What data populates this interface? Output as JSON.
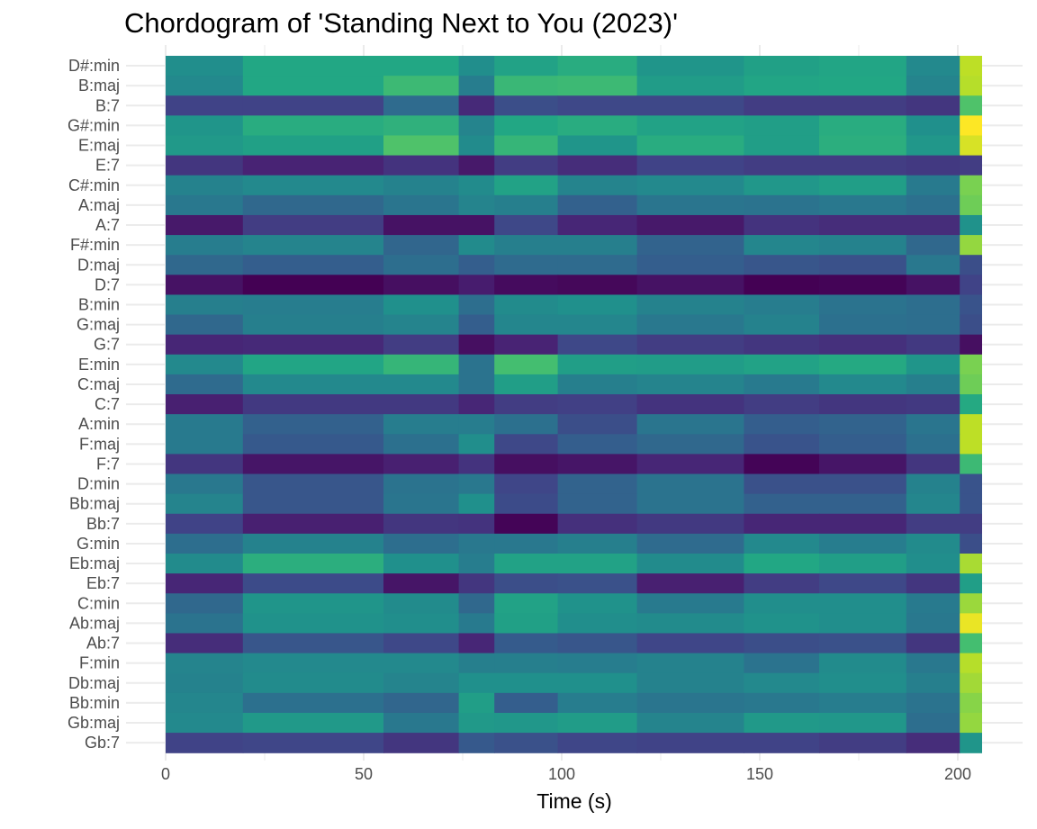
{
  "chart_data": {
    "type": "heatmap",
    "title": "Chordogram of 'Standing Next to You (2023)'",
    "xlabel": "Time (s)",
    "ylabel": "",
    "xlim": [
      0,
      206
    ],
    "x_ticks": [
      0,
      50,
      100,
      150,
      200
    ],
    "grid": true,
    "colormap": "viridis",
    "chords": [
      "D#:min",
      "B:maj",
      "B:7",
      "G#:min",
      "E:maj",
      "E:7",
      "C#:min",
      "A:maj",
      "A:7",
      "F#:min",
      "D:maj",
      "D:7",
      "B:min",
      "G:maj",
      "G:7",
      "E:min",
      "C:maj",
      "C:7",
      "A:min",
      "F:maj",
      "F:7",
      "D:min",
      "Bb:maj",
      "Bb:7",
      "G:min",
      "Eb:maj",
      "Eb:7",
      "C:min",
      "Ab:maj",
      "Ab:7",
      "F:min",
      "Db:maj",
      "Bb:min",
      "Gb:maj",
      "Gb:7"
    ],
    "time_segments": [
      0,
      19.5,
      55,
      74,
      83,
      99,
      119,
      146,
      165,
      187,
      200.5,
      206
    ],
    "values": [
      [
        0.49,
        0.6,
        0.6,
        0.49,
        0.58,
        0.62,
        0.52,
        0.57,
        0.59,
        0.47,
        0.9
      ],
      [
        0.47,
        0.6,
        0.68,
        0.42,
        0.67,
        0.68,
        0.55,
        0.59,
        0.6,
        0.45,
        0.89
      ],
      [
        0.2,
        0.2,
        0.35,
        0.12,
        0.24,
        0.22,
        0.22,
        0.18,
        0.18,
        0.16,
        0.72
      ],
      [
        0.52,
        0.62,
        0.64,
        0.45,
        0.6,
        0.62,
        0.58,
        0.56,
        0.62,
        0.5,
        1.0
      ],
      [
        0.54,
        0.57,
        0.72,
        0.48,
        0.66,
        0.52,
        0.62,
        0.56,
        0.63,
        0.53,
        0.94
      ],
      [
        0.16,
        0.1,
        0.15,
        0.07,
        0.18,
        0.13,
        0.2,
        0.18,
        0.18,
        0.17,
        0.18
      ],
      [
        0.44,
        0.47,
        0.44,
        0.48,
        0.58,
        0.45,
        0.47,
        0.53,
        0.56,
        0.41,
        0.8
      ],
      [
        0.4,
        0.34,
        0.39,
        0.45,
        0.43,
        0.31,
        0.39,
        0.38,
        0.4,
        0.37,
        0.78
      ],
      [
        0.07,
        0.18,
        0.05,
        0.05,
        0.22,
        0.11,
        0.07,
        0.15,
        0.13,
        0.13,
        0.51
      ],
      [
        0.42,
        0.45,
        0.33,
        0.48,
        0.43,
        0.43,
        0.32,
        0.46,
        0.44,
        0.34,
        0.84
      ],
      [
        0.34,
        0.3,
        0.36,
        0.3,
        0.35,
        0.35,
        0.3,
        0.27,
        0.25,
        0.4,
        0.24
      ],
      [
        0.05,
        0.0,
        0.04,
        0.08,
        0.03,
        0.02,
        0.05,
        0.0,
        0.01,
        0.05,
        0.2
      ],
      [
        0.43,
        0.42,
        0.5,
        0.36,
        0.48,
        0.5,
        0.44,
        0.42,
        0.38,
        0.36,
        0.26
      ],
      [
        0.34,
        0.43,
        0.45,
        0.3,
        0.46,
        0.46,
        0.4,
        0.44,
        0.37,
        0.36,
        0.24
      ],
      [
        0.11,
        0.12,
        0.18,
        0.04,
        0.1,
        0.22,
        0.18,
        0.16,
        0.14,
        0.17,
        0.04
      ],
      [
        0.47,
        0.59,
        0.66,
        0.38,
        0.7,
        0.56,
        0.55,
        0.58,
        0.61,
        0.52,
        0.8
      ],
      [
        0.35,
        0.47,
        0.47,
        0.38,
        0.56,
        0.43,
        0.45,
        0.41,
        0.47,
        0.43,
        0.78
      ],
      [
        0.09,
        0.17,
        0.17,
        0.11,
        0.18,
        0.19,
        0.15,
        0.18,
        0.16,
        0.17,
        0.61
      ],
      [
        0.41,
        0.31,
        0.42,
        0.42,
        0.37,
        0.24,
        0.39,
        0.3,
        0.32,
        0.39,
        0.9
      ],
      [
        0.41,
        0.28,
        0.37,
        0.49,
        0.22,
        0.3,
        0.34,
        0.26,
        0.3,
        0.37,
        0.9
      ],
      [
        0.16,
        0.06,
        0.09,
        0.15,
        0.04,
        0.06,
        0.11,
        0.01,
        0.06,
        0.16,
        0.68
      ],
      [
        0.4,
        0.27,
        0.38,
        0.4,
        0.21,
        0.32,
        0.38,
        0.25,
        0.25,
        0.44,
        0.26
      ],
      [
        0.45,
        0.27,
        0.39,
        0.5,
        0.23,
        0.32,
        0.38,
        0.31,
        0.31,
        0.46,
        0.26
      ],
      [
        0.2,
        0.09,
        0.16,
        0.15,
        0.01,
        0.14,
        0.17,
        0.11,
        0.11,
        0.18,
        0.18
      ],
      [
        0.36,
        0.44,
        0.36,
        0.4,
        0.4,
        0.43,
        0.35,
        0.47,
        0.42,
        0.48,
        0.24
      ],
      [
        0.48,
        0.63,
        0.5,
        0.42,
        0.58,
        0.58,
        0.48,
        0.6,
        0.56,
        0.49,
        0.87
      ],
      [
        0.11,
        0.23,
        0.06,
        0.16,
        0.24,
        0.25,
        0.09,
        0.18,
        0.22,
        0.16,
        0.56
      ],
      [
        0.34,
        0.52,
        0.48,
        0.34,
        0.58,
        0.51,
        0.41,
        0.49,
        0.49,
        0.41,
        0.85
      ],
      [
        0.38,
        0.51,
        0.49,
        0.41,
        0.57,
        0.49,
        0.48,
        0.51,
        0.49,
        0.4,
        0.97
      ],
      [
        0.13,
        0.27,
        0.22,
        0.11,
        0.29,
        0.27,
        0.21,
        0.24,
        0.25,
        0.16,
        0.7
      ],
      [
        0.45,
        0.47,
        0.47,
        0.43,
        0.43,
        0.42,
        0.44,
        0.38,
        0.48,
        0.4,
        0.89
      ],
      [
        0.44,
        0.48,
        0.45,
        0.5,
        0.5,
        0.5,
        0.44,
        0.47,
        0.49,
        0.43,
        0.86
      ],
      [
        0.46,
        0.37,
        0.33,
        0.56,
        0.3,
        0.42,
        0.39,
        0.4,
        0.42,
        0.38,
        0.82
      ],
      [
        0.47,
        0.54,
        0.4,
        0.54,
        0.53,
        0.55,
        0.45,
        0.54,
        0.53,
        0.36,
        0.84
      ],
      [
        0.2,
        0.21,
        0.16,
        0.28,
        0.25,
        0.21,
        0.2,
        0.2,
        0.18,
        0.13,
        0.52
      ]
    ]
  }
}
